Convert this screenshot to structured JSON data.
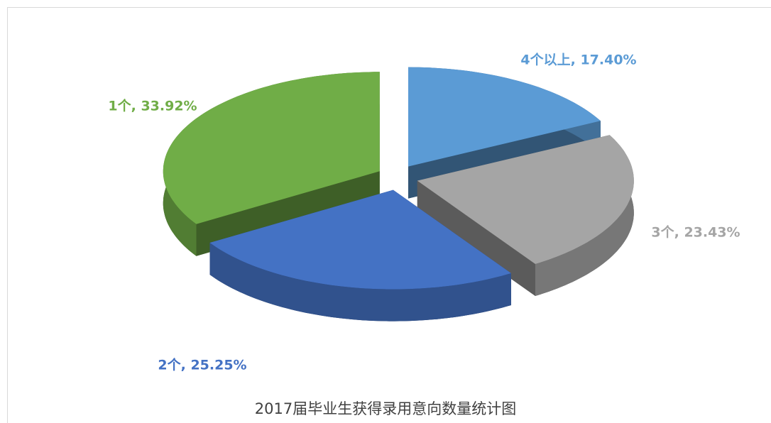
{
  "chart_data": {
    "type": "pie3d",
    "title": "2017届毕业生获得录用意向数量统计图",
    "values": [
      17.4,
      23.43,
      25.25,
      33.92
    ],
    "value_labels": [
      "4个以上, 17.40%",
      "3个, 23.43%",
      "2个, 25.25%",
      "1个, 33.92%"
    ],
    "colors": [
      "#5b9bd5",
      "#a5a5a5",
      "#4472c4",
      "#70ad47"
    ]
  }
}
